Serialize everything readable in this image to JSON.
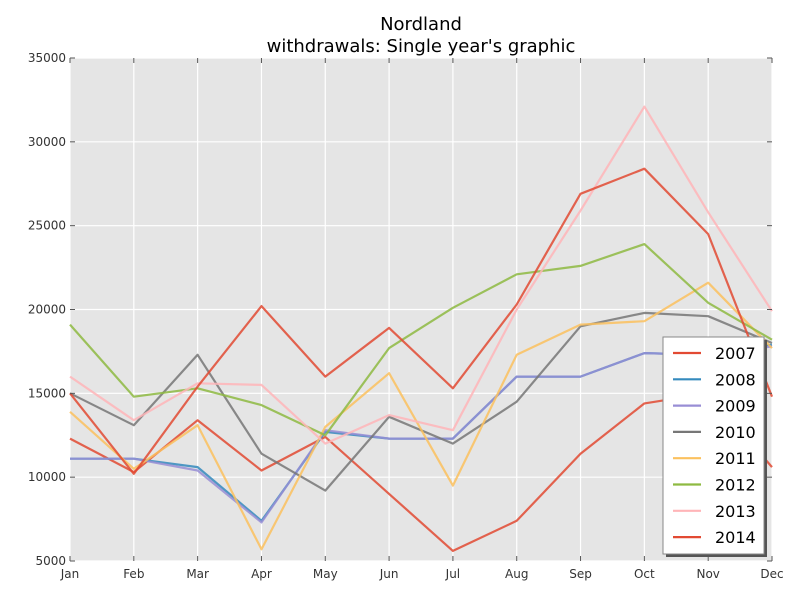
{
  "chart_data": {
    "type": "line",
    "title": "Nordland",
    "subtitle": "withdrawals: Single year's graphic",
    "xlabel": "",
    "ylabel": "",
    "categories": [
      "Jan",
      "Feb",
      "Mar",
      "Apr",
      "May",
      "Jun",
      "Jul",
      "Aug",
      "Sep",
      "Oct",
      "Nov",
      "Dec"
    ],
    "ylim": [
      5000,
      35000
    ],
    "yticks": [
      5000,
      10000,
      15000,
      20000,
      25000,
      30000,
      35000
    ],
    "grid": true,
    "legend_position": "lower-right",
    "series": [
      {
        "name": "2007",
        "color": "#e24a33",
        "values": [
          12300,
          10300,
          13400,
          10400,
          12400,
          9000,
          5600,
          7400,
          11400,
          14400,
          15000,
          10600
        ]
      },
      {
        "name": "2008",
        "color": "#348abd",
        "values": [
          11100,
          11100,
          10600,
          7400,
          12700,
          12300,
          12300,
          16000,
          16000,
          17400,
          17300,
          17900
        ]
      },
      {
        "name": "2009",
        "color": "#988ed5",
        "values": [
          11100,
          11100,
          10400,
          7300,
          12800,
          12300,
          12300,
          16000,
          16000,
          17400,
          17300,
          17800
        ]
      },
      {
        "name": "2010",
        "color": "#777777",
        "values": [
          15000,
          13100,
          17300,
          11400,
          9200,
          13600,
          12000,
          14500,
          19000,
          19800,
          19600,
          18000
        ]
      },
      {
        "name": "2011",
        "color": "#fbc15e",
        "values": [
          13900,
          10500,
          13100,
          5700,
          13000,
          16200,
          9500,
          17300,
          19100,
          19300,
          21600,
          17700
        ]
      },
      {
        "name": "2012",
        "color": "#8eba42",
        "values": [
          19100,
          14800,
          15300,
          14300,
          12500,
          17700,
          20100,
          22100,
          22600,
          23900,
          20400,
          18200
        ]
      },
      {
        "name": "2013",
        "color": "#ffb5b8",
        "values": [
          16000,
          13400,
          15600,
          15500,
          12000,
          13700,
          12800,
          20000,
          25900,
          32100,
          25800,
          19900
        ]
      },
      {
        "name": "2014",
        "color": "#e24a33",
        "values": [
          15000,
          10200,
          15400,
          20200,
          16000,
          18900,
          15300,
          20300,
          26900,
          28400,
          24500,
          14800
        ]
      }
    ]
  }
}
